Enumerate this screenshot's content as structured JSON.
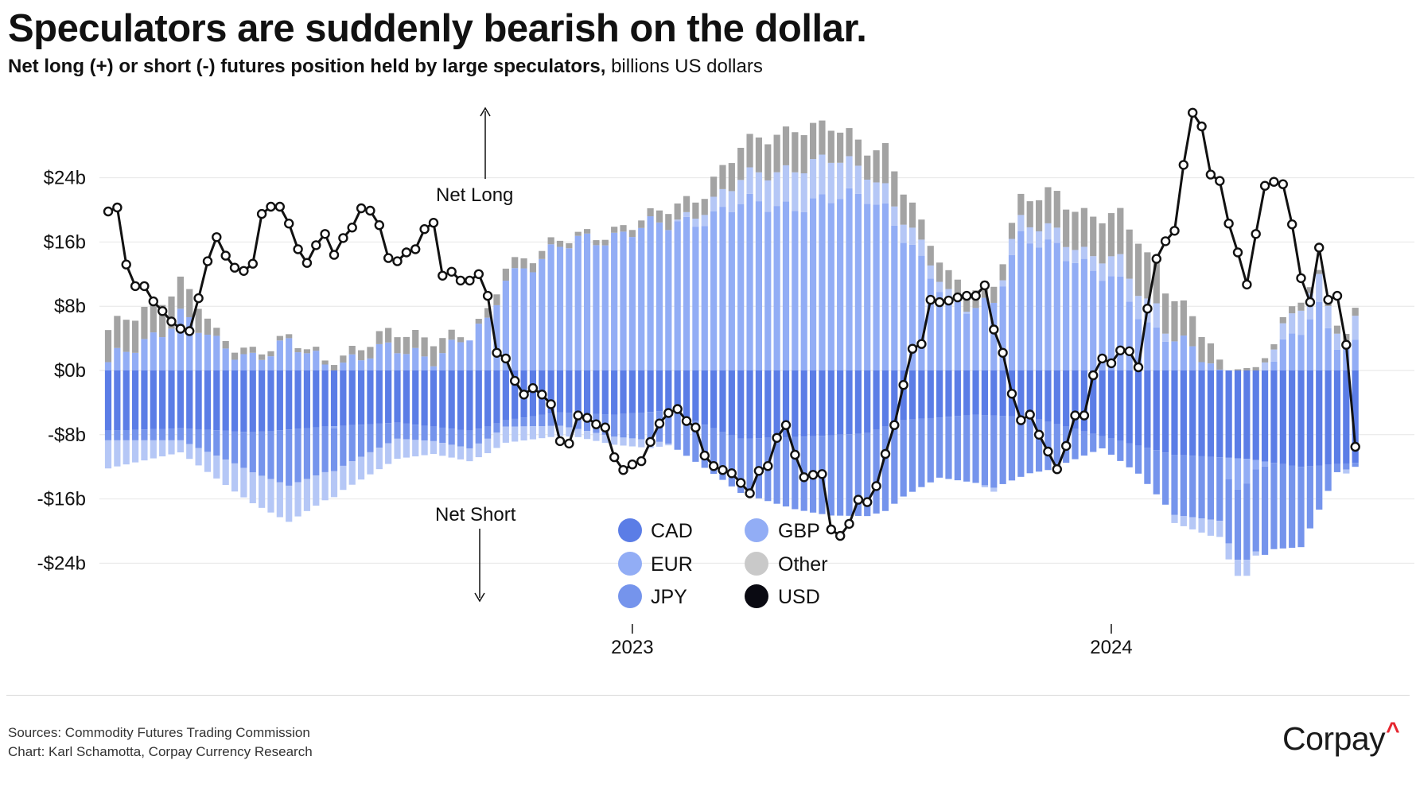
{
  "title": "Speculators are suddenly bearish on the dollar.",
  "subtitle_bold": "Net long (+) or short (-) futures position held by large speculators,",
  "subtitle_unit": "billions US dollars",
  "footer": {
    "sources": "Sources: Commodity Futures Trading Commission",
    "credit": "Chart: Karl Schamotta, Corpay Currency Research"
  },
  "logo": {
    "text": "Corpay",
    "caret": "^"
  },
  "chart_data": {
    "type": "bar",
    "stacked": true,
    "title": "Speculators are suddenly bearish on the dollar.",
    "ylabel": "billions US dollars",
    "ylim": [
      -28,
      32
    ],
    "yticks": [
      -24,
      -16,
      -8,
      0,
      8,
      16,
      24
    ],
    "ytick_labels": [
      "-$24b",
      "-$16b",
      "-$8b",
      "$0b",
      "$8b",
      "$16b",
      "$24b"
    ],
    "frequency": "weekly",
    "n_periods": 138,
    "xticks": [
      {
        "index": 58,
        "label": "2023"
      },
      {
        "index": 111,
        "label": "2024"
      }
    ],
    "annotations": {
      "net_long": "Net Long",
      "net_short": "Net Short"
    },
    "colors": {
      "CAD": "#5b7de6",
      "EUR": "#92adf5",
      "JPY": "#7594ec",
      "GBP": "#b5c7f6",
      "Other": "#a3a3a3",
      "USD": "#111111",
      "grid": "#e6e6e6"
    },
    "legend": [
      "CAD",
      "GBP",
      "EUR",
      "Other",
      "JPY",
      "USD"
    ],
    "usd_anchors": [
      [
        0,
        19.8
      ],
      [
        1,
        20.3
      ],
      [
        2,
        13.2
      ],
      [
        3,
        10.5
      ],
      [
        4,
        10.5
      ],
      [
        5,
        8.6
      ],
      [
        6,
        7.4
      ],
      [
        7,
        6.1
      ],
      [
        8,
        5.2
      ],
      [
        9,
        4.9
      ],
      [
        10,
        9
      ],
      [
        11,
        13.6
      ],
      [
        12,
        16.6
      ],
      [
        13,
        14.3
      ],
      [
        14,
        12.8
      ],
      [
        15,
        12.4
      ],
      [
        16,
        13.3
      ],
      [
        17,
        19.5
      ],
      [
        18,
        20.4
      ],
      [
        19,
        20.4
      ],
      [
        20,
        18.3
      ],
      [
        21,
        15.1
      ],
      [
        22,
        13.4
      ],
      [
        23,
        15.6
      ],
      [
        24,
        17
      ],
      [
        25,
        14.4
      ],
      [
        26,
        16.5
      ],
      [
        27,
        17.8
      ],
      [
        28,
        20.2
      ],
      [
        29,
        19.9
      ],
      [
        30,
        18.1
      ],
      [
        31,
        14
      ],
      [
        32,
        13.6
      ],
      [
        33,
        14.7
      ],
      [
        34,
        15.1
      ],
      [
        35,
        17.6
      ],
      [
        36,
        18.4
      ],
      [
        37,
        11.8
      ],
      [
        38,
        12.3
      ],
      [
        39,
        11.2
      ],
      [
        40,
        11.2
      ],
      [
        41,
        12
      ],
      [
        42,
        9.3
      ],
      [
        43,
        2.2
      ],
      [
        44,
        1.5
      ],
      [
        45,
        -1.3
      ],
      [
        46,
        -3
      ],
      [
        47,
        -2.2
      ],
      [
        48,
        -3
      ],
      [
        49,
        -4.2
      ],
      [
        50,
        -8.8
      ],
      [
        51,
        -9.1
      ],
      [
        52,
        -5.6
      ],
      [
        53,
        -5.9
      ],
      [
        54,
        -6.7
      ],
      [
        55,
        -7.1
      ],
      [
        56,
        -10.8
      ],
      [
        57,
        -12.4
      ],
      [
        58,
        -11.7
      ],
      [
        59,
        -11.3
      ],
      [
        60,
        -8.9
      ],
      [
        61,
        -6.6
      ],
      [
        62,
        -5.3
      ],
      [
        63,
        -4.8
      ],
      [
        64,
        -6.3
      ],
      [
        65,
        -7.1
      ],
      [
        66,
        -10.6
      ],
      [
        67,
        -11.9
      ],
      [
        68,
        -12.4
      ],
      [
        69,
        -12.8
      ],
      [
        70,
        -14
      ],
      [
        71,
        -15.3
      ],
      [
        72,
        -12.5
      ],
      [
        73,
        -11.9
      ],
      [
        74,
        -8.4
      ],
      [
        75,
        -6.8
      ],
      [
        76,
        -10.5
      ],
      [
        77,
        -13.3
      ],
      [
        78,
        -13
      ],
      [
        79,
        -12.9
      ],
      [
        80,
        -19.8
      ],
      [
        81,
        -20.6
      ],
      [
        82,
        -19.1
      ],
      [
        83,
        -16.1
      ],
      [
        84,
        -16.4
      ],
      [
        85,
        -14.4
      ],
      [
        86,
        -10.4
      ],
      [
        87,
        -6.8
      ],
      [
        88,
        -1.8
      ],
      [
        89,
        2.7
      ],
      [
        90,
        3.3
      ],
      [
        91,
        8.8
      ],
      [
        92,
        8.5
      ],
      [
        93,
        8.7
      ],
      [
        94,
        9.1
      ],
      [
        95,
        9.3
      ],
      [
        96,
        9.3
      ],
      [
        97,
        10.6
      ],
      [
        98,
        5.1
      ],
      [
        99,
        2.2
      ],
      [
        100,
        -2.9
      ],
      [
        101,
        -6.2
      ],
      [
        102,
        -5.5
      ],
      [
        103,
        -8
      ],
      [
        104,
        -10.1
      ],
      [
        105,
        -12.3
      ],
      [
        106,
        -9.4
      ],
      [
        107,
        -5.6
      ],
      [
        108,
        -5.6
      ],
      [
        109,
        -0.6
      ],
      [
        110,
        1.5
      ],
      [
        111,
        0.9
      ],
      [
        112,
        2.5
      ],
      [
        113,
        2.4
      ],
      [
        114,
        0.4
      ],
      [
        115,
        7.7
      ],
      [
        116,
        13.9
      ],
      [
        117,
        16.1
      ],
      [
        118,
        17.4
      ],
      [
        119,
        25.6
      ],
      [
        120,
        32.1
      ],
      [
        121,
        30.4
      ],
      [
        122,
        24.4
      ],
      [
        123,
        23.6
      ],
      [
        124,
        18.3
      ],
      [
        125,
        14.7
      ],
      [
        126,
        10.7
      ],
      [
        127,
        17
      ],
      [
        128,
        23
      ],
      [
        129,
        23.5
      ],
      [
        130,
        23.2
      ],
      [
        131,
        18.2
      ],
      [
        132,
        11.5
      ],
      [
        133,
        8.5
      ],
      [
        134,
        15.3
      ],
      [
        135,
        8.8
      ],
      [
        136,
        9.3
      ],
      [
        137,
        3.2
      ],
      [
        138,
        -9.5
      ]
    ],
    "cad_anchors": [
      [
        0,
        -7.5
      ],
      [
        8,
        -7.2
      ],
      [
        16,
        -7.7
      ],
      [
        24,
        -7
      ],
      [
        32,
        -6.5
      ],
      [
        40,
        -7.5
      ],
      [
        42,
        -7
      ],
      [
        44,
        -6.2
      ],
      [
        50,
        -5.2
      ],
      [
        56,
        -5.5
      ],
      [
        62,
        -5
      ],
      [
        70,
        -8.5
      ],
      [
        78,
        -8.2
      ],
      [
        84,
        -7.8
      ],
      [
        88,
        -6.2
      ],
      [
        96,
        -5.5
      ],
      [
        102,
        -5.8
      ],
      [
        110,
        -8.2
      ],
      [
        118,
        -10.5
      ],
      [
        126,
        -11
      ],
      [
        132,
        -12
      ],
      [
        138,
        -11.5
      ]
    ],
    "eur_anchors": [
      [
        0,
        0.5
      ],
      [
        8,
        7
      ],
      [
        12,
        3
      ],
      [
        16,
        2
      ],
      [
        20,
        3
      ],
      [
        24,
        1
      ],
      [
        32,
        2.5
      ],
      [
        36,
        2
      ],
      [
        40,
        4
      ],
      [
        42,
        5.5
      ],
      [
        44,
        12
      ],
      [
        52,
        16
      ],
      [
        58,
        17.5
      ],
      [
        62,
        18
      ],
      [
        70,
        20.5
      ],
      [
        80,
        21
      ],
      [
        84,
        22
      ],
      [
        86,
        20.5
      ],
      [
        90,
        13
      ],
      [
        93,
        8.5
      ],
      [
        98,
        8.5
      ],
      [
        101,
        16
      ],
      [
        105,
        16
      ],
      [
        109,
        12
      ],
      [
        112,
        10.5
      ],
      [
        115,
        6
      ],
      [
        118,
        4
      ],
      [
        122,
        0.5
      ],
      [
        124,
        -2
      ],
      [
        126,
        -3
      ],
      [
        128,
        0
      ],
      [
        132,
        5
      ],
      [
        134,
        8
      ],
      [
        136,
        4
      ],
      [
        138,
        3
      ]
    ],
    "eur_noise": "deterministic small oscillation",
    "jpy_anchors": [
      [
        0,
        -1.2
      ],
      [
        8,
        -1.5
      ],
      [
        14,
        -4
      ],
      [
        20,
        -7
      ],
      [
        26,
        -5
      ],
      [
        32,
        -2
      ],
      [
        36,
        -1.8
      ],
      [
        40,
        -2.2
      ],
      [
        42,
        -1.5
      ],
      [
        44,
        -0.8
      ],
      [
        52,
        -2
      ],
      [
        60,
        -3.5
      ],
      [
        68,
        -6
      ],
      [
        76,
        -9
      ],
      [
        80,
        -10
      ],
      [
        86,
        -10.5
      ],
      [
        88,
        -9.5
      ],
      [
        92,
        -7.5
      ],
      [
        98,
        -9
      ],
      [
        104,
        -6
      ],
      [
        108,
        -3
      ],
      [
        110,
        -1.5
      ],
      [
        114,
        -3.5
      ],
      [
        118,
        -7.5
      ],
      [
        124,
        -8
      ],
      [
        128,
        -11
      ],
      [
        132,
        -10
      ],
      [
        136,
        -1
      ],
      [
        138,
        -0.5
      ]
    ],
    "gbp_anchors": [
      [
        0,
        -3.5
      ],
      [
        8,
        -1.5
      ],
      [
        14,
        -3.5
      ],
      [
        20,
        -4.5
      ],
      [
        26,
        -3
      ],
      [
        32,
        -2.5
      ],
      [
        36,
        -1.6
      ],
      [
        40,
        -1.6
      ],
      [
        44,
        -2
      ],
      [
        52,
        -1
      ],
      [
        60,
        -1
      ],
      [
        70,
        3
      ],
      [
        76,
        4.8
      ],
      [
        80,
        5
      ],
      [
        84,
        3
      ],
      [
        86,
        2.5
      ],
      [
        90,
        2
      ],
      [
        94,
        0.5
      ],
      [
        98,
        -0.5
      ],
      [
        100,
        2
      ],
      [
        104,
        2
      ],
      [
        108,
        1.5
      ],
      [
        112,
        2.8
      ],
      [
        116,
        3
      ],
      [
        118,
        -1
      ],
      [
        122,
        -2
      ],
      [
        126,
        -2
      ],
      [
        128,
        1
      ],
      [
        132,
        3
      ],
      [
        134,
        3.5
      ],
      [
        136,
        2
      ],
      [
        137,
        -0.5
      ],
      [
        138,
        3
      ]
    ],
    "other_anchors": [
      [
        0,
        4
      ],
      [
        8,
        4
      ],
      [
        10,
        3
      ],
      [
        12,
        1
      ],
      [
        20,
        0.5
      ],
      [
        24,
        0.5
      ],
      [
        32,
        2
      ],
      [
        36,
        2.5
      ],
      [
        40,
        0
      ],
      [
        42,
        1.2
      ],
      [
        44,
        1.5
      ],
      [
        52,
        0.5
      ],
      [
        60,
        1
      ],
      [
        62,
        2
      ],
      [
        66,
        2
      ],
      [
        70,
        4
      ],
      [
        76,
        5
      ],
      [
        80,
        4
      ],
      [
        84,
        3
      ],
      [
        86,
        5
      ],
      [
        90,
        2.5
      ],
      [
        96,
        2.2
      ],
      [
        98,
        2
      ],
      [
        100,
        2
      ],
      [
        104,
        4.5
      ],
      [
        110,
        5
      ],
      [
        114,
        6.5
      ],
      [
        116,
        5
      ],
      [
        118,
        5
      ],
      [
        122,
        2.5
      ],
      [
        124,
        0
      ],
      [
        126,
        0.3
      ],
      [
        132,
        1
      ],
      [
        134,
        0.5
      ],
      [
        136,
        1
      ],
      [
        138,
        1
      ]
    ]
  }
}
